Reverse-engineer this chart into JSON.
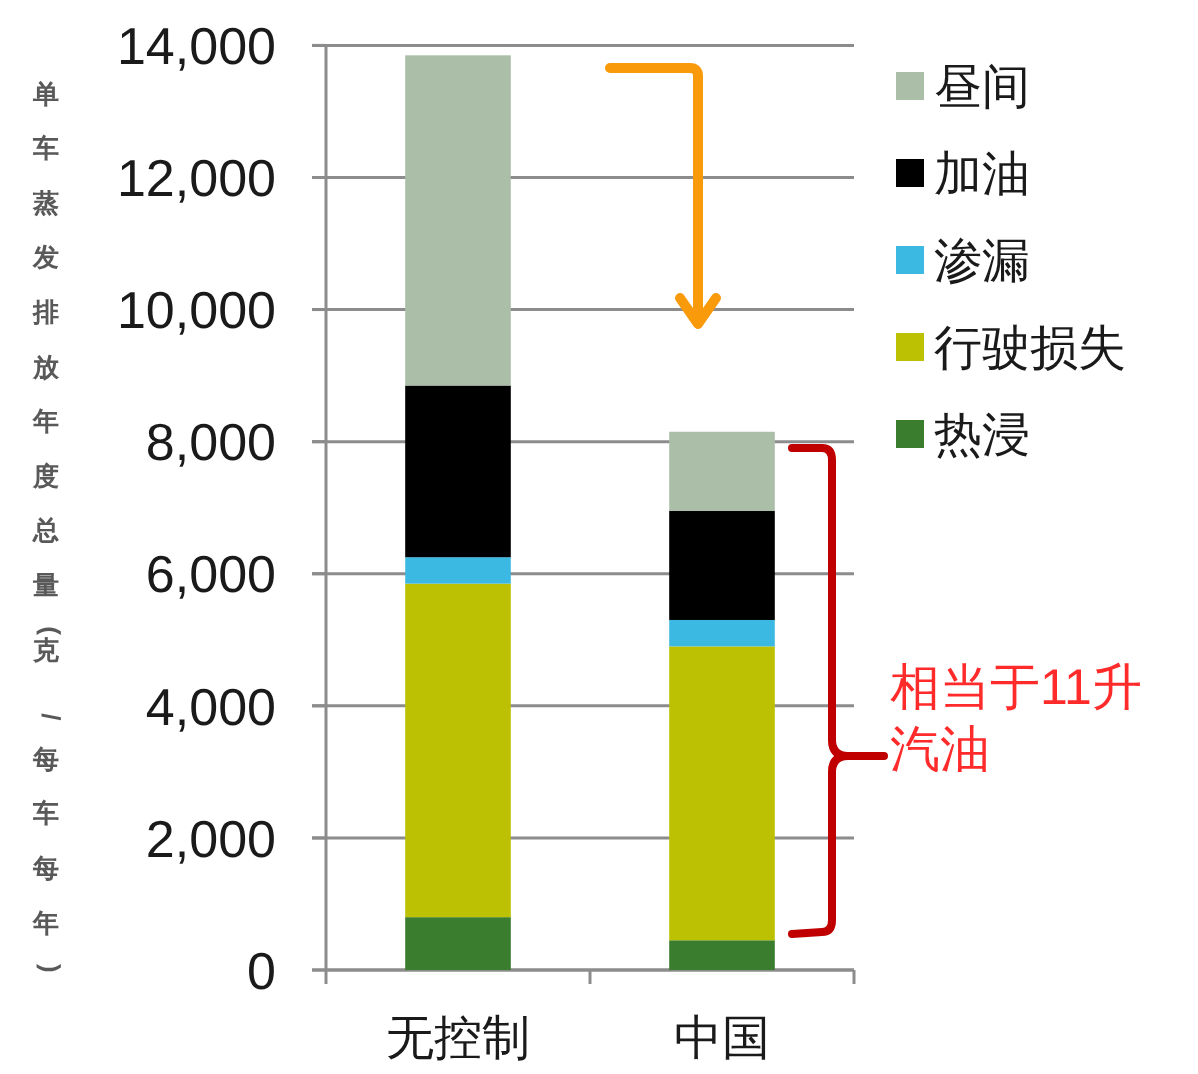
{
  "chart_data": {
    "type": "bar",
    "stacked": true,
    "categories": [
      "无控制",
      "中国"
    ],
    "series": [
      {
        "name": "热浸",
        "color": "#3a7d2e",
        "values": [
          800,
          450
        ]
      },
      {
        "name": "行驶损失",
        "color": "#bcc203",
        "values": [
          5050,
          4450
        ]
      },
      {
        "name": "渗漏",
        "color": "#3cb9e3",
        "values": [
          400,
          400
        ]
      },
      {
        "name": "加油",
        "color": "#000000",
        "values": [
          2600,
          1650
        ]
      },
      {
        "name": "昼间",
        "color": "#abbfa8",
        "values": [
          5000,
          1200
        ]
      }
    ],
    "ylabel": "单车蒸发排放年度总量(克/每车每年)",
    "ylim": [
      0,
      14000
    ],
    "yticks": [
      0,
      {
        "value": 2000,
        "label": "2,000"
      },
      {
        "value": 4000,
        "label": "4,000"
      },
      {
        "value": 6000,
        "label": "6,000"
      },
      {
        "value": 8000,
        "label": "8,000"
      },
      {
        "value": 10000,
        "label": "10,000"
      },
      {
        "value": 12000,
        "label": "12,000"
      },
      {
        "value": 14000,
        "label": "14,000"
      }
    ],
    "grid": "y",
    "legend": "right",
    "annotations": [
      "相当于11升汽油"
    ]
  }
}
